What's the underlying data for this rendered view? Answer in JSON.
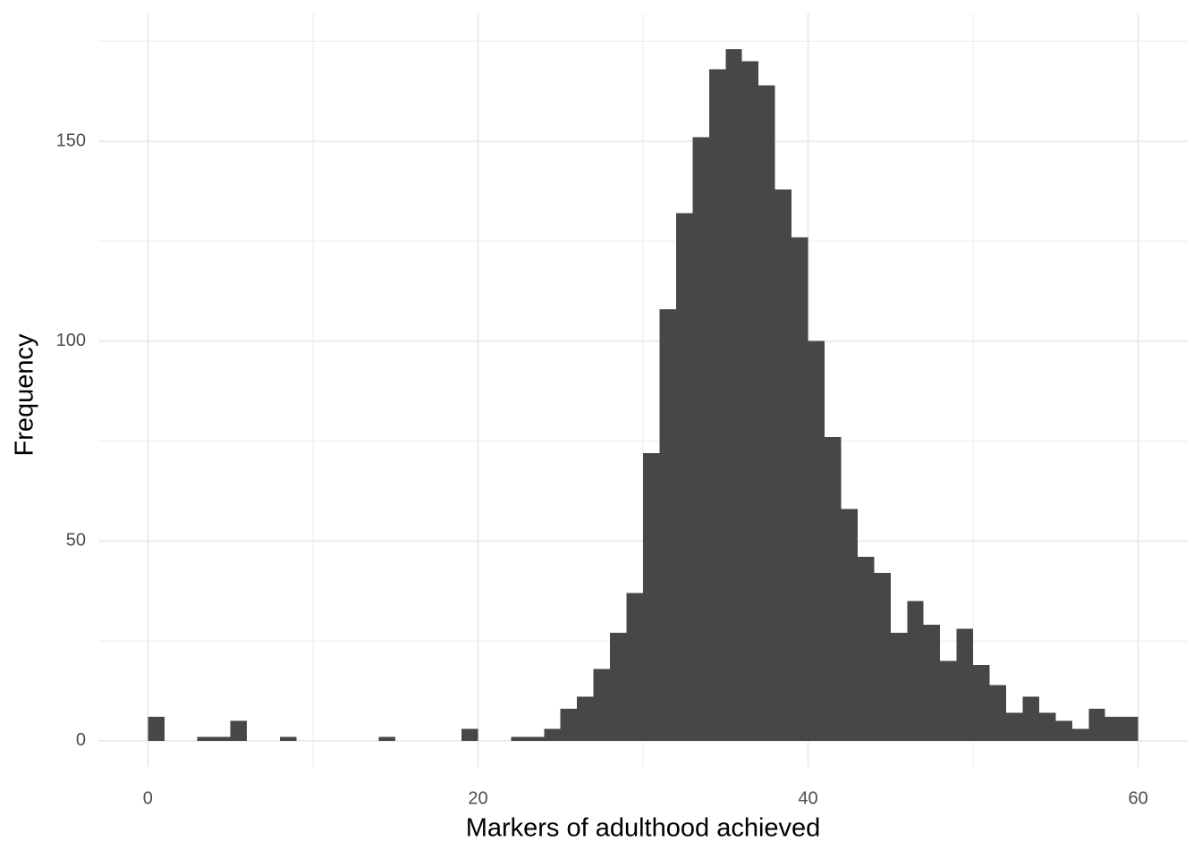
{
  "chart_data": {
    "type": "histogram",
    "x_label": "Markers of adulthood achieved",
    "y_label": "Frequency",
    "bins": [
      0,
      1,
      2,
      3,
      4,
      5,
      6,
      7,
      8,
      9,
      10,
      11,
      12,
      13,
      14,
      15,
      16,
      17,
      18,
      19,
      20,
      21,
      22,
      23,
      24,
      25,
      26,
      27,
      28,
      29,
      30,
      31,
      32,
      33,
      34,
      35,
      36,
      37,
      38,
      39,
      40,
      41,
      42,
      43,
      44,
      45,
      46,
      47,
      48,
      49,
      50,
      51,
      52,
      53,
      54,
      55,
      56,
      57,
      58,
      59,
      60
    ],
    "counts": [
      6,
      0,
      0,
      1,
      1,
      5,
      0,
      0,
      1,
      0,
      0,
      0,
      0,
      0,
      1,
      0,
      0,
      0,
      0,
      3,
      0,
      0,
      1,
      1,
      3,
      8,
      11,
      18,
      27,
      37,
      72,
      108,
      132,
      151,
      168,
      173,
      170,
      164,
      138,
      126,
      100,
      76,
      58,
      46,
      42,
      27,
      35,
      29,
      20,
      28,
      19,
      14,
      7,
      11,
      7,
      5,
      3,
      8,
      6,
      6
    ],
    "color": "#474747",
    "xlim": [
      -3,
      63
    ],
    "ylim": [
      -6.5,
      182
    ],
    "xticks": [
      0,
      20,
      40,
      60
    ],
    "yticks": [
      0,
      50,
      100,
      150
    ],
    "grid": true
  }
}
